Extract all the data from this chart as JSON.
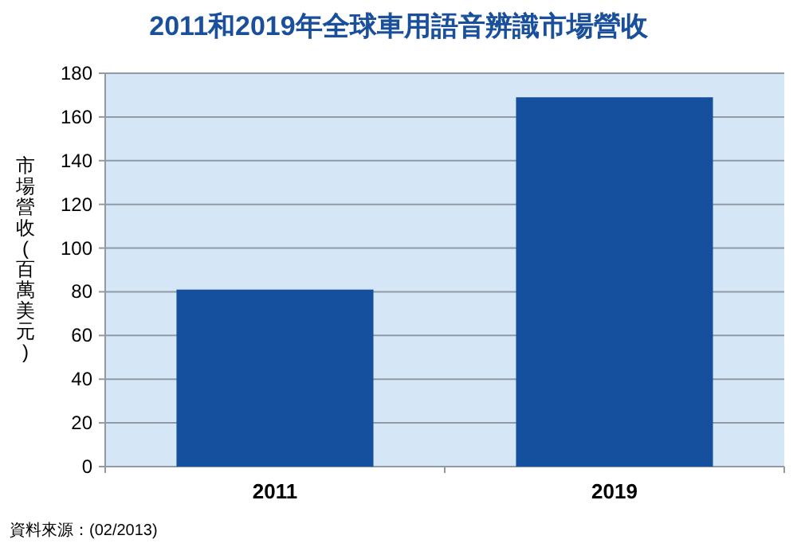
{
  "chart_data": {
    "type": "bar",
    "title": "2011和2019年全球車用語音辨識市場營收",
    "ylabel": "市場營收(百萬美元)",
    "categories": [
      "2011",
      "2019"
    ],
    "values": [
      81,
      169
    ],
    "color": "#15509f",
    "ylim": [
      0,
      180
    ],
    "yticks": [
      0,
      20,
      40,
      60,
      80,
      100,
      120,
      140,
      160,
      180
    ],
    "grid": "y",
    "annotations": [
      "資料來源：(02/2013)"
    ]
  }
}
